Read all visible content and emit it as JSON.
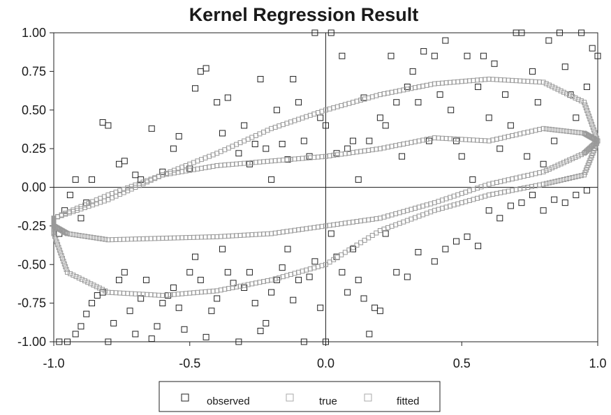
{
  "chart_data": {
    "type": "scatter",
    "title": "Kernel Regression Result",
    "xlabel": "",
    "ylabel": "",
    "xlim": [
      -1.0,
      1.0
    ],
    "ylim": [
      -1.0,
      1.0
    ],
    "x_ticks": [
      -1.0,
      -0.5,
      0.0,
      0.5,
      1.0
    ],
    "x_tick_labels": [
      "-1.0",
      "-0.5",
      "0.0",
      "0.5",
      "1.0"
    ],
    "y_ticks": [
      1.0,
      0.75,
      0.5,
      0.25,
      0.0,
      -0.25,
      -0.5,
      -0.75,
      -1.0
    ],
    "y_tick_labels": [
      "1.00",
      "0.75",
      "0.50",
      "0.25",
      "0.00",
      "-0.25",
      "-0.50",
      "-0.75",
      "-1.00"
    ],
    "grid": false,
    "axes_through_origin": true,
    "legend": {
      "placement": "bottom-center",
      "entries": [
        {
          "label": "observed",
          "marker": "open-square",
          "color": "#222222"
        },
        {
          "label": "true",
          "marker": "open-square",
          "color": "#aaaaaa"
        },
        {
          "label": "fitted",
          "marker": "open-square",
          "color": "#aaaaaa"
        }
      ]
    },
    "series": [
      {
        "name": "observed",
        "marker": "open-square",
        "color": "#222222",
        "points": [
          [
            -0.98,
            -1.0
          ],
          [
            -0.95,
            -1.0
          ],
          [
            -0.92,
            -0.95
          ],
          [
            -0.9,
            -0.9
          ],
          [
            -0.88,
            -0.82
          ],
          [
            -0.86,
            -0.75
          ],
          [
            -0.84,
            -0.7
          ],
          [
            -0.82,
            -0.68
          ],
          [
            -0.8,
            -1.0
          ],
          [
            -0.78,
            -0.88
          ],
          [
            -0.76,
            -0.6
          ],
          [
            -0.74,
            -0.55
          ],
          [
            -0.72,
            -0.8
          ],
          [
            -0.7,
            -0.95
          ],
          [
            -0.68,
            -0.72
          ],
          [
            -0.66,
            -0.6
          ],
          [
            -0.64,
            -0.98
          ],
          [
            -0.62,
            -0.9
          ],
          [
            -0.6,
            -0.75
          ],
          [
            -0.58,
            -0.7
          ],
          [
            -0.56,
            -0.65
          ],
          [
            -0.54,
            -0.78
          ],
          [
            -0.52,
            -0.92
          ],
          [
            -0.5,
            -0.55
          ],
          [
            -0.48,
            -0.45
          ],
          [
            -0.46,
            -0.6
          ],
          [
            -0.44,
            -0.97
          ],
          [
            -0.42,
            -0.8
          ],
          [
            -0.4,
            -0.72
          ],
          [
            -0.38,
            -0.4
          ],
          [
            -0.36,
            -0.55
          ],
          [
            -0.34,
            -0.62
          ],
          [
            -0.32,
            -1.0
          ],
          [
            -0.3,
            -0.65
          ],
          [
            -0.28,
            -0.55
          ],
          [
            -0.26,
            -0.75
          ],
          [
            -0.24,
            -0.93
          ],
          [
            -0.22,
            -0.88
          ],
          [
            -0.2,
            -0.68
          ],
          [
            -0.18,
            -0.6
          ],
          [
            -0.16,
            -0.52
          ],
          [
            -0.14,
            -0.4
          ],
          [
            -0.12,
            -0.73
          ],
          [
            -0.1,
            -0.6
          ],
          [
            -0.08,
            -1.0
          ],
          [
            -0.06,
            -0.58
          ],
          [
            -0.04,
            -0.48
          ],
          [
            -0.02,
            -0.78
          ],
          [
            0.0,
            -1.0
          ],
          [
            0.02,
            -0.3
          ],
          [
            0.04,
            -0.45
          ],
          [
            0.06,
            -0.55
          ],
          [
            0.08,
            -0.68
          ],
          [
            0.1,
            -0.4
          ],
          [
            0.12,
            -0.6
          ],
          [
            0.14,
            -0.72
          ],
          [
            0.16,
            -0.95
          ],
          [
            0.18,
            -0.78
          ],
          [
            0.2,
            -0.8
          ],
          [
            0.22,
            -0.3
          ],
          [
            0.26,
            -0.55
          ],
          [
            0.3,
            -0.58
          ],
          [
            0.34,
            -0.42
          ],
          [
            0.4,
            -0.48
          ],
          [
            0.44,
            -0.4
          ],
          [
            0.48,
            -0.35
          ],
          [
            0.52,
            -0.32
          ],
          [
            0.56,
            -0.38
          ],
          [
            0.6,
            -0.15
          ],
          [
            0.64,
            -0.2
          ],
          [
            0.68,
            -0.12
          ],
          [
            0.72,
            -0.1
          ],
          [
            0.76,
            -0.05
          ],
          [
            0.8,
            -0.15
          ],
          [
            0.84,
            -0.08
          ],
          [
            0.88,
            -0.1
          ],
          [
            0.92,
            -0.05
          ],
          [
            0.96,
            -0.02
          ],
          [
            -0.98,
            -0.3
          ],
          [
            -0.96,
            -0.15
          ],
          [
            -0.94,
            -0.05
          ],
          [
            -0.92,
            0.05
          ],
          [
            -0.9,
            -0.2
          ],
          [
            -0.88,
            -0.1
          ],
          [
            -0.86,
            0.05
          ],
          [
            -0.82,
            0.42
          ],
          [
            -0.8,
            0.4
          ],
          [
            -0.76,
            0.15
          ],
          [
            -0.74,
            0.17
          ],
          [
            -0.7,
            0.08
          ],
          [
            -0.68,
            0.05
          ],
          [
            -0.64,
            0.38
          ],
          [
            -0.6,
            0.1
          ],
          [
            -0.56,
            0.25
          ],
          [
            -0.54,
            0.33
          ],
          [
            -0.5,
            0.12
          ],
          [
            -0.48,
            0.64
          ],
          [
            -0.46,
            0.75
          ],
          [
            -0.44,
            0.77
          ],
          [
            -0.4,
            0.55
          ],
          [
            -0.38,
            0.35
          ],
          [
            -0.36,
            0.58
          ],
          [
            -0.32,
            0.22
          ],
          [
            -0.3,
            0.4
          ],
          [
            -0.28,
            0.15
          ],
          [
            -0.26,
            0.28
          ],
          [
            -0.24,
            0.7
          ],
          [
            -0.22,
            0.25
          ],
          [
            -0.2,
            0.05
          ],
          [
            -0.18,
            0.5
          ],
          [
            -0.16,
            0.28
          ],
          [
            -0.14,
            0.18
          ],
          [
            -0.12,
            0.7
          ],
          [
            -0.1,
            0.55
          ],
          [
            -0.08,
            0.3
          ],
          [
            -0.06,
            0.2
          ],
          [
            -0.04,
            1.0
          ],
          [
            -0.02,
            0.45
          ],
          [
            0.0,
            0.4
          ],
          [
            0.02,
            1.0
          ],
          [
            0.04,
            0.22
          ],
          [
            0.06,
            0.85
          ],
          [
            0.08,
            0.25
          ],
          [
            0.1,
            0.3
          ],
          [
            0.12,
            0.05
          ],
          [
            0.14,
            0.58
          ],
          [
            0.16,
            0.3
          ],
          [
            0.2,
            0.45
          ],
          [
            0.22,
            0.4
          ],
          [
            0.24,
            0.85
          ],
          [
            0.26,
            0.55
          ],
          [
            0.28,
            0.2
          ],
          [
            0.3,
            0.65
          ],
          [
            0.32,
            0.75
          ],
          [
            0.34,
            0.55
          ],
          [
            0.36,
            0.88
          ],
          [
            0.38,
            0.3
          ],
          [
            0.4,
            0.85
          ],
          [
            0.42,
            0.6
          ],
          [
            0.44,
            0.95
          ],
          [
            0.46,
            0.5
          ],
          [
            0.48,
            0.3
          ],
          [
            0.5,
            0.2
          ],
          [
            0.52,
            0.85
          ],
          [
            0.54,
            0.05
          ],
          [
            0.56,
            0.65
          ],
          [
            0.58,
            0.85
          ],
          [
            0.6,
            0.45
          ],
          [
            0.62,
            0.8
          ],
          [
            0.64,
            0.25
          ],
          [
            0.66,
            0.6
          ],
          [
            0.68,
            0.4
          ],
          [
            0.7,
            1.0
          ],
          [
            0.72,
            1.0
          ],
          [
            0.74,
            0.2
          ],
          [
            0.76,
            0.75
          ],
          [
            0.78,
            0.55
          ],
          [
            0.8,
            0.15
          ],
          [
            0.82,
            0.95
          ],
          [
            0.84,
            0.3
          ],
          [
            0.86,
            1.0
          ],
          [
            0.88,
            0.78
          ],
          [
            0.9,
            0.6
          ],
          [
            0.92,
            0.45
          ],
          [
            0.94,
            1.0
          ],
          [
            0.96,
            0.65
          ],
          [
            0.98,
            0.9
          ],
          [
            1.0,
            0.85
          ]
        ]
      },
      {
        "name": "true",
        "marker": "open-square",
        "color": "#999999",
        "curve": "upper-band",
        "points": [
          [
            -1.0,
            -0.2
          ],
          [
            -0.8,
            -0.08
          ],
          [
            -0.6,
            0.08
          ],
          [
            -0.4,
            0.22
          ],
          [
            -0.2,
            0.38
          ],
          [
            0.0,
            0.5
          ],
          [
            0.2,
            0.6
          ],
          [
            0.4,
            0.67
          ],
          [
            0.6,
            0.7
          ],
          [
            0.8,
            0.68
          ],
          [
            0.95,
            0.55
          ],
          [
            1.0,
            0.3
          ],
          [
            0.95,
            0.08
          ],
          [
            0.8,
            0.02
          ],
          [
            0.6,
            -0.05
          ],
          [
            0.4,
            -0.15
          ],
          [
            0.2,
            -0.28
          ],
          [
            0.0,
            -0.5
          ],
          [
            -0.2,
            -0.6
          ],
          [
            -0.4,
            -0.67
          ],
          [
            -0.6,
            -0.7
          ],
          [
            -0.8,
            -0.68
          ],
          [
            -0.95,
            -0.55
          ],
          [
            -1.0,
            -0.3
          ]
        ]
      },
      {
        "name": "fitted",
        "marker": "open-square",
        "color": "#999999",
        "curve": "inner-band",
        "points": [
          [
            -1.0,
            -0.2
          ],
          [
            -0.8,
            -0.05
          ],
          [
            -0.6,
            0.08
          ],
          [
            -0.4,
            0.14
          ],
          [
            -0.2,
            0.17
          ],
          [
            0.0,
            0.2
          ],
          [
            0.2,
            0.25
          ],
          [
            0.4,
            0.32
          ],
          [
            0.6,
            0.3
          ],
          [
            0.8,
            0.38
          ],
          [
            0.95,
            0.35
          ],
          [
            1.0,
            0.3
          ],
          [
            0.95,
            0.22
          ],
          [
            0.8,
            0.1
          ],
          [
            0.6,
            0.02
          ],
          [
            0.4,
            -0.1
          ],
          [
            0.2,
            -0.2
          ],
          [
            0.0,
            -0.25
          ],
          [
            -0.2,
            -0.3
          ],
          [
            -0.4,
            -0.32
          ],
          [
            -0.6,
            -0.33
          ],
          [
            -0.8,
            -0.34
          ],
          [
            -0.95,
            -0.3
          ],
          [
            -1.0,
            -0.25
          ]
        ]
      }
    ]
  }
}
